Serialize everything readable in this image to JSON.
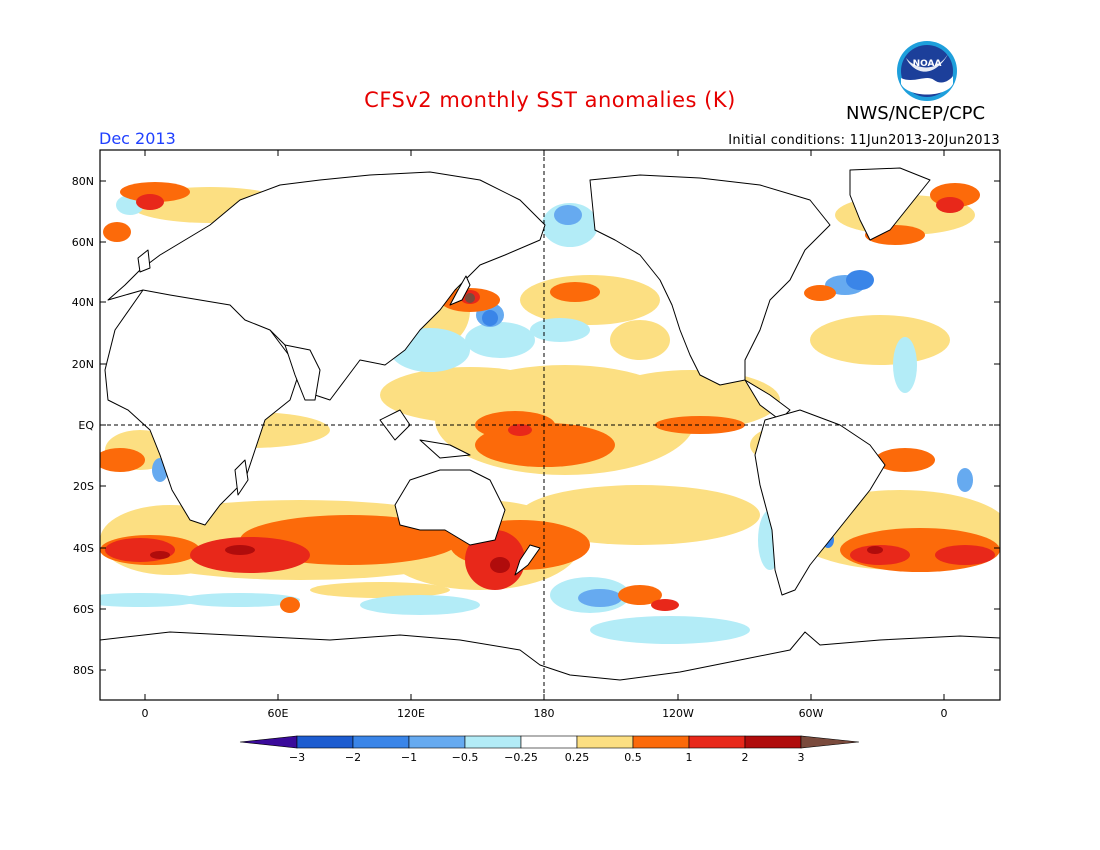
{
  "header": {
    "title": "CFSv2 monthly SST anomalies (K)",
    "organization": "NWS/NCEP/CPC",
    "logo_text": "NOAA",
    "valid_month": "Dec 2013",
    "initial_conditions": "Initial conditions: 11Jun2013-20Jun2013"
  },
  "map": {
    "lat_labels": [
      "80N",
      "60N",
      "40N",
      "20N",
      "EQ",
      "20S",
      "40S",
      "60S",
      "80S"
    ],
    "lon_labels": [
      "0",
      "60E",
      "120E",
      "180",
      "120W",
      "60W",
      "0"
    ],
    "reference_lines": [
      "equator dashed",
      "180 meridian dashed"
    ]
  },
  "colorbar": {
    "levels": [
      "-3",
      "-2",
      "-1",
      "-0.5",
      "-0.25",
      "0.25",
      "0.5",
      "1",
      "2",
      "3"
    ],
    "colors": [
      "#3a0a9a",
      "#1d5cd0",
      "#3a85e8",
      "#66aaf0",
      "#b3ecf7",
      "#ffffff",
      "#fcdf82",
      "#fc6a0a",
      "#e8281a",
      "#b00c0c",
      "#7a4a3c"
    ]
  },
  "colors": {
    "title": "#e60000",
    "month": "#2040ff",
    "land_outline": "#000000"
  },
  "anomaly_regions": [
    {
      "region": "central equatorial Pacific",
      "level": "1"
    },
    {
      "region": "eastern equatorial Pacific",
      "level": "1"
    },
    {
      "region": "Kuroshio extension",
      "level": "1"
    },
    {
      "region": "Kuroshio core",
      "level": "2"
    },
    {
      "region": "north-central Pacific",
      "level": "1"
    },
    {
      "region": "South Atlantic 40S",
      "level": "2"
    },
    {
      "region": "Indian Ocean 40S",
      "level": "2"
    },
    {
      "region": "Tasman Sea",
      "level": "2"
    },
    {
      "region": "Southern Ocean 55S 150W",
      "level": "-1"
    },
    {
      "region": "Gulf Stream",
      "level": "-2"
    },
    {
      "region": "Bering Strait",
      "level": "-0.5"
    },
    {
      "region": "Barents Sea",
      "level": "2"
    }
  ]
}
